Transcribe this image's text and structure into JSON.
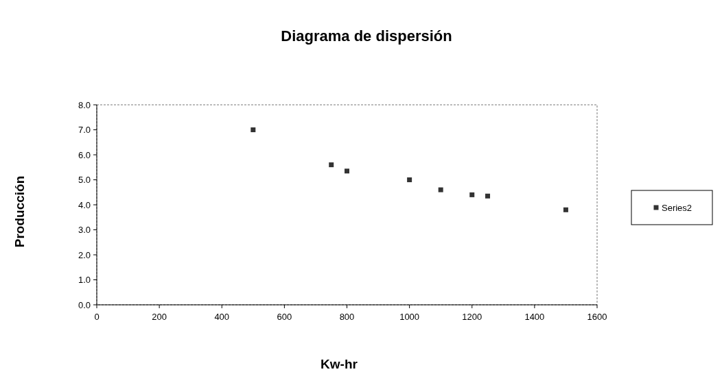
{
  "chart_data": {
    "type": "scatter",
    "title": "Diagrama de dispersión",
    "xlabel": "Kw-hr",
    "ylabel": "Producción",
    "x": [
      500,
      750,
      800,
      1000,
      1100,
      1200,
      1250,
      1500
    ],
    "series": [
      {
        "name": "Series2",
        "color": "#333333",
        "values": [
          7.0,
          5.6,
          5.35,
          5.0,
          4.6,
          4.4,
          4.35,
          3.8
        ]
      }
    ],
    "xlim": [
      0,
      1600
    ],
    "xticks": [
      0,
      200,
      400,
      600,
      800,
      1000,
      1200,
      1400,
      1600
    ],
    "ylim": [
      0,
      8
    ],
    "yticks": [
      {
        "value": 0,
        "label": "0.0"
      },
      {
        "value": 1,
        "label": "1.0"
      },
      {
        "value": 2,
        "label": "2.0"
      },
      {
        "value": 3,
        "label": "3.0"
      },
      {
        "value": 4,
        "label": "4.0"
      },
      {
        "value": 5,
        "label": "5.0"
      },
      {
        "value": 6,
        "label": "6.0"
      },
      {
        "value": 7,
        "label": "7.0"
      },
      {
        "value": 8,
        "label": "8.0"
      }
    ],
    "marker": "square",
    "legend": "right",
    "grid": false
  }
}
